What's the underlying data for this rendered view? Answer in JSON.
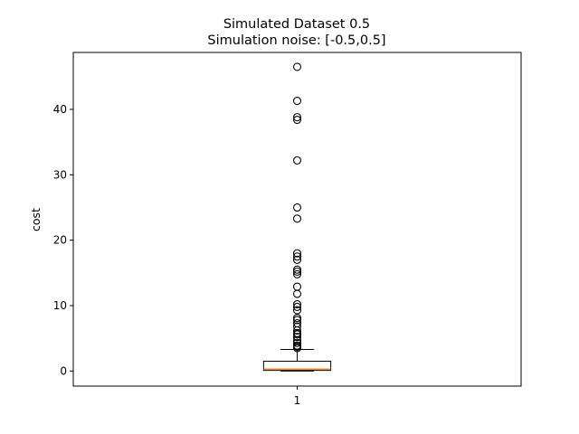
{
  "chart_data": {
    "type": "box",
    "title": "Simulated Dataset 0.5",
    "subtitle": "Simulation noise: [-0.5,0.5]",
    "xlabel": "",
    "ylabel": "cost",
    "categories": [
      "1"
    ],
    "ylim": [
      -2.3,
      48.7
    ],
    "y_ticks": [
      0,
      10,
      20,
      30,
      40
    ],
    "grid": false,
    "colors": {
      "box": "#000000",
      "median": "#ff7f0e",
      "flier": "#000000"
    },
    "boxes": [
      {
        "label": "1",
        "whisker_low": 0.0,
        "q1": 0.1,
        "median": 0.3,
        "q3": 1.5,
        "whisker_high": 3.3,
        "fliers": [
          46.5,
          41.3,
          38.8,
          38.4,
          32.2,
          25.0,
          23.3,
          18.0,
          17.5,
          17.0,
          15.5,
          15.2,
          14.8,
          12.9,
          11.8,
          10.2,
          9.8,
          9.3,
          8.1,
          7.8,
          7.3,
          6.8,
          6.2,
          5.8,
          5.6,
          5.2,
          4.7,
          4.3,
          3.9,
          3.7,
          3.5
        ]
      }
    ]
  }
}
